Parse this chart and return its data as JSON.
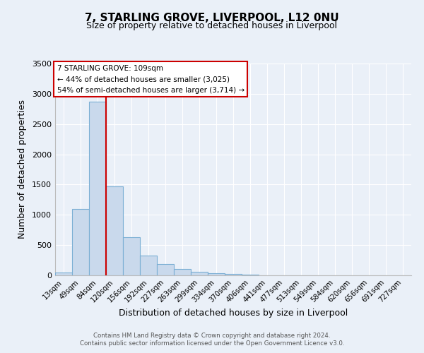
{
  "title": "7, STARLING GROVE, LIVERPOOL, L12 0NU",
  "subtitle": "Size of property relative to detached houses in Liverpool",
  "xlabel": "Distribution of detached houses by size in Liverpool",
  "ylabel": "Number of detached properties",
  "bar_labels": [
    "13sqm",
    "49sqm",
    "84sqm",
    "120sqm",
    "156sqm",
    "192sqm",
    "227sqm",
    "263sqm",
    "299sqm",
    "334sqm",
    "370sqm",
    "406sqm",
    "441sqm",
    "477sqm",
    "513sqm",
    "549sqm",
    "584sqm",
    "620sqm",
    "656sqm",
    "691sqm",
    "727sqm"
  ],
  "bar_values": [
    50,
    1100,
    2875,
    1475,
    630,
    330,
    185,
    100,
    55,
    35,
    20,
    15,
    5,
    1,
    0,
    0,
    0,
    0,
    0,
    0,
    0
  ],
  "bar_color": "#c9d9ec",
  "bar_edge_color": "#7bafd4",
  "bar_width": 1.0,
  "ylim": [
    0,
    3500
  ],
  "yticks": [
    0,
    500,
    1000,
    1500,
    2000,
    2500,
    3000,
    3500
  ],
  "red_line_x": 2.5,
  "red_line_color": "#cc0000",
  "annotation_title": "7 STARLING GROVE: 109sqm",
  "annotation_line1": "← 44% of detached houses are smaller (3,025)",
  "annotation_line2": "54% of semi-detached houses are larger (3,714) →",
  "annotation_box_color": "#ffffff",
  "annotation_box_edge_color": "#cc0000",
  "bg_color": "#eaf0f8",
  "footer_line1": "Contains HM Land Registry data © Crown copyright and database right 2024.",
  "footer_line2": "Contains public sector information licensed under the Open Government Licence v3.0."
}
